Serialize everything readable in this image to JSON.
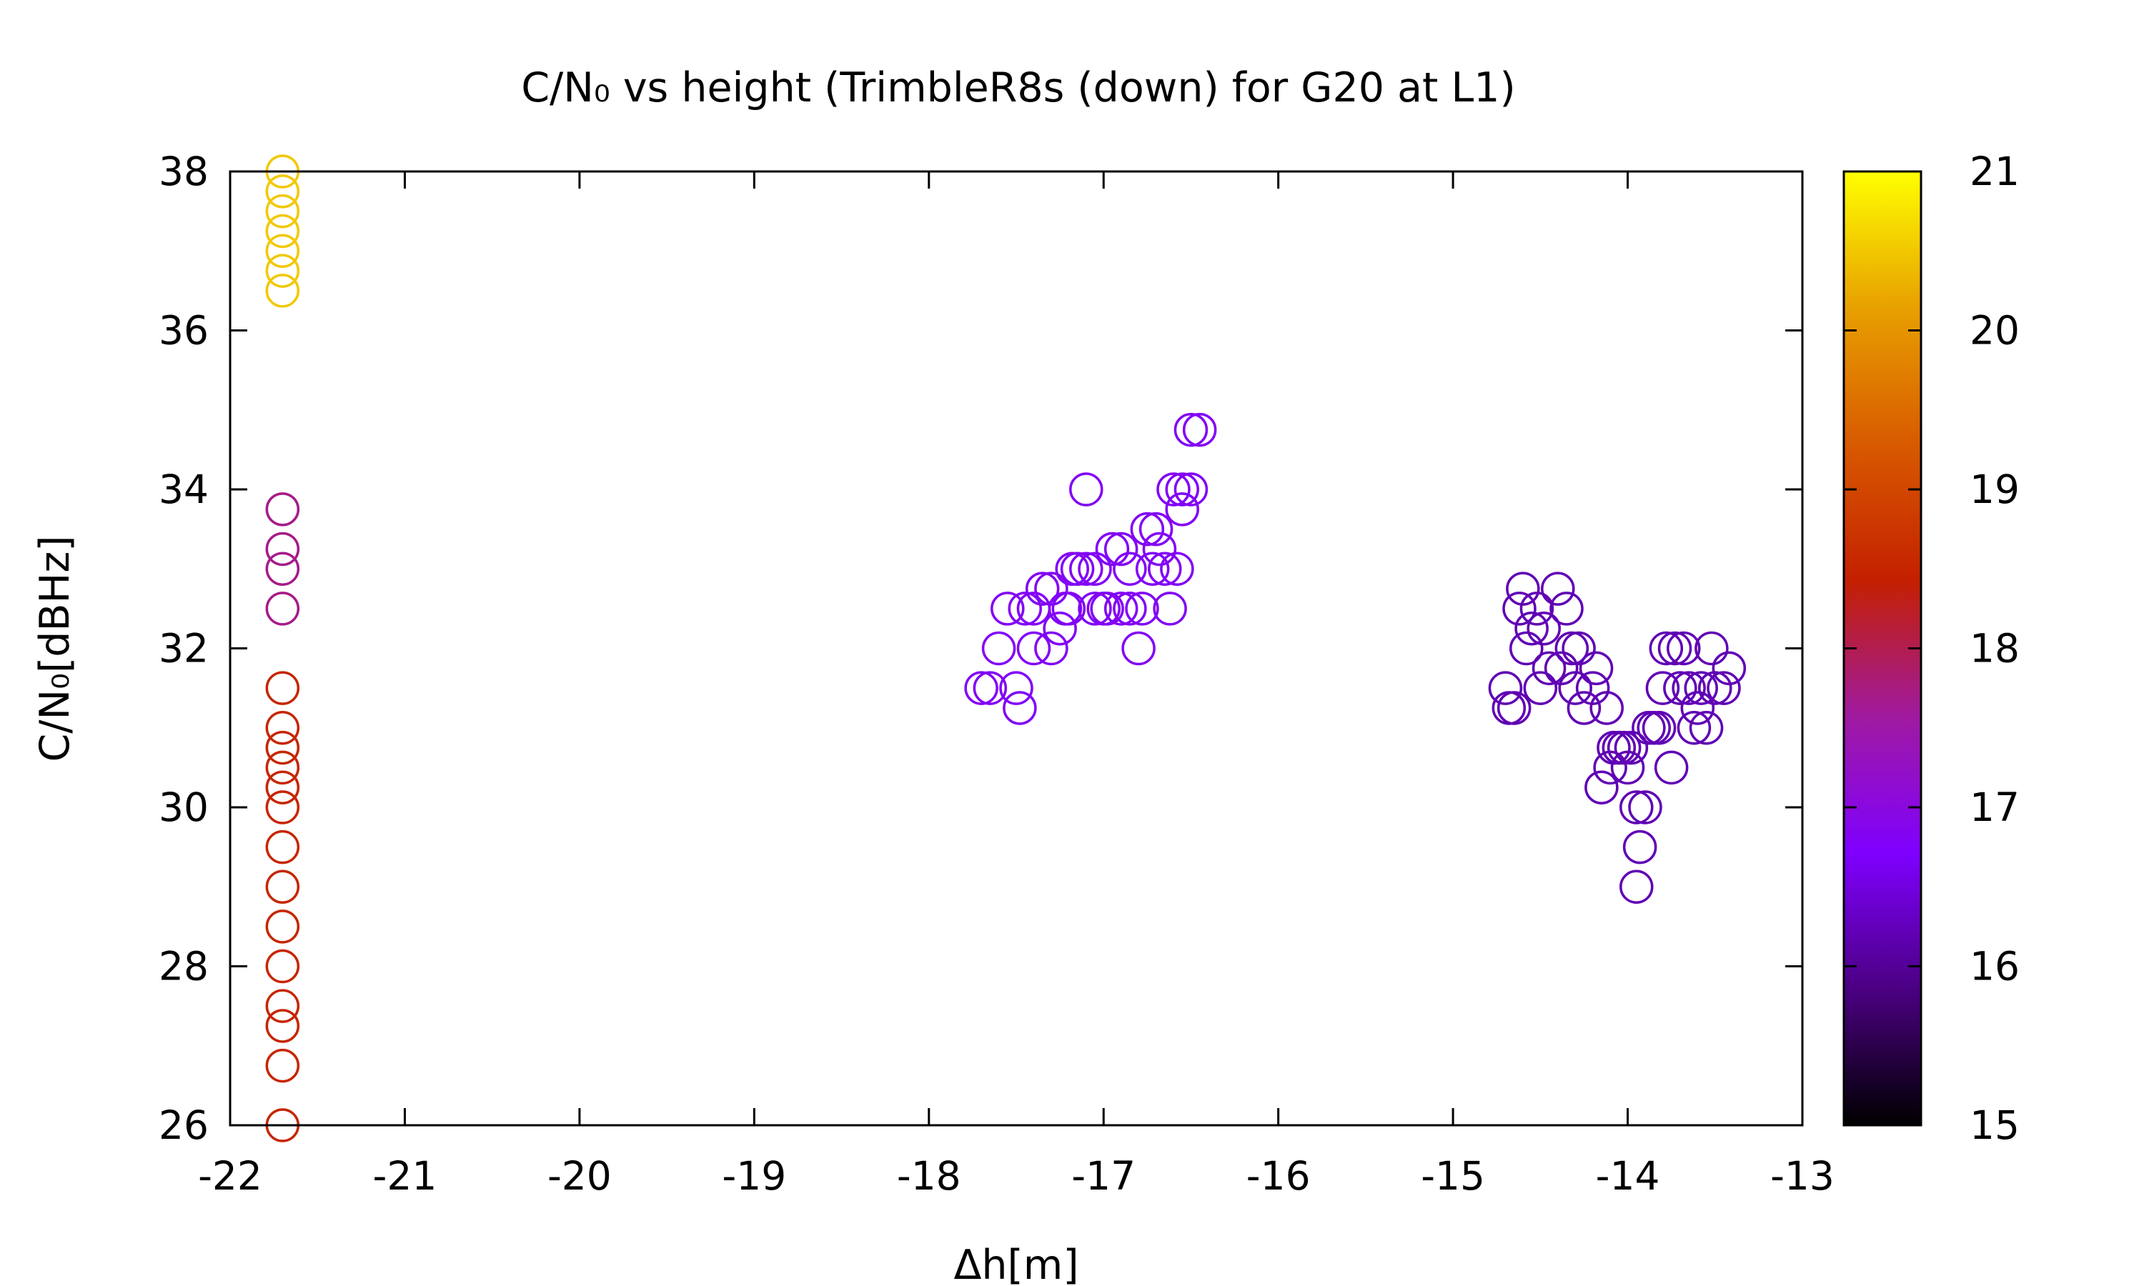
{
  "chart_data": {
    "type": "scatter",
    "title": "C/N₀ vs height (TrimbleR8s (down) for G20 at L1)",
    "xlabel": "Δh[m]",
    "ylabel": "C/N₀[dBHz]",
    "xlim": [
      -22,
      -13
    ],
    "ylim": [
      26,
      38
    ],
    "xticks": [
      "-22",
      "-21",
      "-20",
      "-19",
      "-18",
      "-17",
      "-16",
      "-15",
      "-14",
      "-13"
    ],
    "yticks": [
      "26",
      "28",
      "30",
      "32",
      "34",
      "36",
      "38"
    ],
    "colorbar": {
      "range": [
        15,
        21
      ],
      "ticks": [
        "15",
        "16",
        "17",
        "18",
        "19",
        "20",
        "21"
      ],
      "palette": [
        "#000000",
        "#4b0082",
        "#7f00ff",
        "#a01aa0",
        "#c42000",
        "#d85a00",
        "#e8a000",
        "#ffff00"
      ]
    },
    "grid": false,
    "marker": "open-circle",
    "points": [
      [
        -21.7,
        38.0,
        20.5
      ],
      [
        -21.7,
        37.75,
        20.5
      ],
      [
        -21.7,
        37.5,
        20.5
      ],
      [
        -21.7,
        37.25,
        20.5
      ],
      [
        -21.7,
        37.0,
        20.5
      ],
      [
        -21.7,
        36.75,
        20.5
      ],
      [
        -21.7,
        36.5,
        20.5
      ],
      [
        -21.7,
        33.75,
        17.7
      ],
      [
        -21.7,
        33.25,
        17.7
      ],
      [
        -21.7,
        33.0,
        17.7
      ],
      [
        -21.7,
        32.5,
        17.7
      ],
      [
        -21.7,
        31.5,
        18.5
      ],
      [
        -21.7,
        31.0,
        18.5
      ],
      [
        -21.7,
        30.75,
        18.5
      ],
      [
        -21.7,
        30.5,
        18.5
      ],
      [
        -21.7,
        30.25,
        18.5
      ],
      [
        -21.7,
        30.0,
        18.5
      ],
      [
        -21.7,
        29.5,
        18.5
      ],
      [
        -21.7,
        29.0,
        18.5
      ],
      [
        -21.7,
        28.5,
        18.5
      ],
      [
        -21.7,
        28.0,
        18.5
      ],
      [
        -21.7,
        27.5,
        18.5
      ],
      [
        -21.7,
        27.25,
        18.5
      ],
      [
        -21.7,
        26.75,
        18.5
      ],
      [
        -21.7,
        26.0,
        18.5
      ],
      [
        -17.7,
        31.5,
        16.8
      ],
      [
        -17.65,
        31.5,
        16.8
      ],
      [
        -17.5,
        31.5,
        16.8
      ],
      [
        -17.48,
        31.25,
        16.8
      ],
      [
        -17.6,
        32.0,
        16.8
      ],
      [
        -17.55,
        32.5,
        16.8
      ],
      [
        -17.45,
        32.5,
        16.8
      ],
      [
        -17.4,
        32.0,
        16.8
      ],
      [
        -17.4,
        32.5,
        16.8
      ],
      [
        -17.35,
        32.75,
        16.8
      ],
      [
        -17.3,
        32.75,
        16.8
      ],
      [
        -17.3,
        32.0,
        16.8
      ],
      [
        -17.25,
        32.25,
        16.8
      ],
      [
        -17.22,
        32.5,
        16.8
      ],
      [
        -17.2,
        32.5,
        16.8
      ],
      [
        -17.18,
        33.0,
        16.8
      ],
      [
        -17.15,
        33.0,
        16.8
      ],
      [
        -17.1,
        34.0,
        16.8
      ],
      [
        -17.1,
        33.0,
        16.8
      ],
      [
        -17.05,
        32.5,
        16.8
      ],
      [
        -17.05,
        33.0,
        16.8
      ],
      [
        -17.0,
        32.5,
        16.8
      ],
      [
        -16.98,
        32.5,
        16.8
      ],
      [
        -16.95,
        33.25,
        16.8
      ],
      [
        -16.9,
        33.25,
        16.8
      ],
      [
        -16.9,
        32.5,
        16.8
      ],
      [
        -16.85,
        33.0,
        16.8
      ],
      [
        -16.85,
        32.5,
        16.8
      ],
      [
        -16.8,
        32.0,
        16.8
      ],
      [
        -16.78,
        32.5,
        16.8
      ],
      [
        -16.75,
        33.5,
        16.8
      ],
      [
        -16.72,
        33.0,
        16.8
      ],
      [
        -16.7,
        33.5,
        16.8
      ],
      [
        -16.68,
        33.25,
        16.8
      ],
      [
        -16.65,
        33.0,
        16.8
      ],
      [
        -16.62,
        32.5,
        16.8
      ],
      [
        -16.6,
        34.0,
        16.8
      ],
      [
        -16.58,
        33.0,
        16.8
      ],
      [
        -16.55,
        34.0,
        16.8
      ],
      [
        -16.55,
        33.75,
        16.8
      ],
      [
        -16.5,
        34.0,
        16.8
      ],
      [
        -16.5,
        34.75,
        16.8
      ],
      [
        -16.45,
        34.75,
        16.8
      ],
      [
        -14.7,
        31.5,
        16.2
      ],
      [
        -14.68,
        31.25,
        16.2
      ],
      [
        -14.65,
        31.25,
        16.2
      ],
      [
        -14.62,
        32.5,
        16.2
      ],
      [
        -14.6,
        32.75,
        16.2
      ],
      [
        -14.58,
        32.0,
        16.2
      ],
      [
        -14.55,
        32.25,
        16.2
      ],
      [
        -14.52,
        32.5,
        16.2
      ],
      [
        -14.5,
        31.5,
        16.2
      ],
      [
        -14.48,
        32.25,
        16.2
      ],
      [
        -14.45,
        31.75,
        16.2
      ],
      [
        -14.4,
        32.75,
        16.2
      ],
      [
        -14.38,
        31.75,
        16.2
      ],
      [
        -14.35,
        32.5,
        16.2
      ],
      [
        -14.32,
        32.0,
        16.2
      ],
      [
        -14.3,
        31.5,
        16.2
      ],
      [
        -14.28,
        32.0,
        16.2
      ],
      [
        -14.25,
        31.25,
        16.2
      ],
      [
        -14.2,
        31.5,
        16.2
      ],
      [
        -14.18,
        31.75,
        16.2
      ],
      [
        -14.15,
        30.25,
        16.2
      ],
      [
        -14.12,
        31.25,
        16.2
      ],
      [
        -14.1,
        30.5,
        16.2
      ],
      [
        -14.08,
        30.75,
        16.2
      ],
      [
        -14.05,
        30.75,
        16.2
      ],
      [
        -14.02,
        30.75,
        16.2
      ],
      [
        -14.0,
        30.5,
        16.2
      ],
      [
        -13.98,
        30.75,
        16.2
      ],
      [
        -13.95,
        30.0,
        16.2
      ],
      [
        -13.95,
        29.0,
        16.2
      ],
      [
        -13.93,
        29.5,
        16.2
      ],
      [
        -13.9,
        30.0,
        16.2
      ],
      [
        -13.88,
        31.0,
        16.2
      ],
      [
        -13.85,
        31.0,
        16.2
      ],
      [
        -13.82,
        31.0,
        16.2
      ],
      [
        -13.8,
        31.5,
        16.2
      ],
      [
        -13.78,
        32.0,
        16.2
      ],
      [
        -13.75,
        30.5,
        16.2
      ],
      [
        -13.73,
        32.0,
        16.2
      ],
      [
        -13.7,
        31.5,
        16.2
      ],
      [
        -13.68,
        32.0,
        16.2
      ],
      [
        -13.65,
        31.5,
        16.2
      ],
      [
        -13.62,
        31.0,
        16.2
      ],
      [
        -13.6,
        31.25,
        16.2
      ],
      [
        -13.58,
        31.5,
        16.2
      ],
      [
        -13.55,
        31.0,
        16.2
      ],
      [
        -13.52,
        32.0,
        16.2
      ],
      [
        -13.5,
        31.5,
        16.2
      ],
      [
        -13.45,
        31.5,
        16.2
      ],
      [
        -13.42,
        31.75,
        16.2
      ]
    ]
  }
}
